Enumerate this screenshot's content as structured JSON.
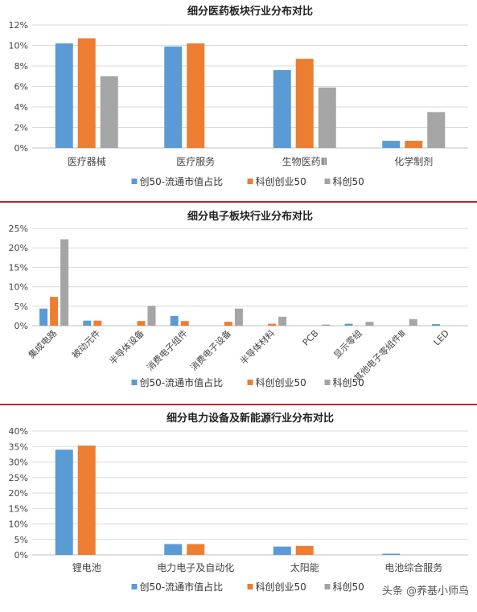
{
  "colors": {
    "s0": "#5b9bd5",
    "s1": "#ed7d31",
    "s2": "#a5a5a5",
    "grid": "#d9d9d9",
    "axis": "#bfbfbf",
    "divider": "#b3262b"
  },
  "watermark": "头条 @养基小师鸟",
  "chart_data": [
    {
      "type": "bar",
      "title": "细分医药板块行业分布对比",
      "categories": [
        "医疗器械",
        "医疗服务",
        "生物医药Ⅲ",
        "化学制剂"
      ],
      "series": [
        {
          "name": "创50-流通市值占比",
          "values": [
            10.2,
            9.9,
            7.6,
            0.7
          ]
        },
        {
          "name": "科创创业50",
          "values": [
            10.7,
            10.2,
            8.7,
            0.7
          ]
        },
        {
          "name": "科创50",
          "values": [
            7.0,
            0,
            5.9,
            3.5
          ]
        }
      ],
      "yticks": [
        "0%",
        "2%",
        "4%",
        "6%",
        "8%",
        "10%",
        "12%"
      ],
      "ylim": [
        0,
        12
      ],
      "grid": true,
      "legend": "bottom"
    },
    {
      "type": "bar",
      "title": "细分电子板块行业分布对比",
      "categories": [
        "集成电路",
        "被动元件",
        "半导体设备",
        "消费电子组件",
        "消费电子设备",
        "半导体材料",
        "PCB",
        "显示零组",
        "其他电子零组件Ⅲ",
        "LED"
      ],
      "series": [
        {
          "name": "创50-流通市值占比",
          "values": [
            4.4,
            1.3,
            0,
            2.5,
            0,
            0,
            0,
            0.5,
            0,
            0.4
          ]
        },
        {
          "name": "科创创业50",
          "values": [
            7.4,
            1.3,
            1.2,
            1.2,
            1.0,
            0.5,
            0,
            0,
            0,
            0
          ]
        },
        {
          "name": "科创50",
          "values": [
            22.2,
            0,
            5.1,
            0,
            4.4,
            2.3,
            0.3,
            1.0,
            1.7,
            0
          ]
        }
      ],
      "yticks": [
        "0%",
        "5%",
        "10%",
        "15%",
        "20%",
        "25%"
      ],
      "ylim": [
        0,
        25
      ],
      "grid": true,
      "legend": "bottom"
    },
    {
      "type": "bar",
      "title": "细分电力设备及新能源行业分布对比",
      "categories": [
        "锂电池",
        "电力电子及自动化",
        "太阳能",
        "电池综合服务"
      ],
      "series": [
        {
          "name": "创50-流通市值占比",
          "values": [
            34.0,
            3.5,
            2.7,
            0.4
          ]
        },
        {
          "name": "科创创业50",
          "values": [
            35.3,
            3.5,
            2.9,
            0
          ]
        },
        {
          "name": "科创50",
          "values": [
            0,
            0,
            0,
            0
          ]
        }
      ],
      "yticks": [
        "0%",
        "5%",
        "10%",
        "15%",
        "20%",
        "25%",
        "30%",
        "35%",
        "40%"
      ],
      "ylim": [
        0,
        40
      ],
      "grid": true,
      "legend": "bottom"
    }
  ]
}
